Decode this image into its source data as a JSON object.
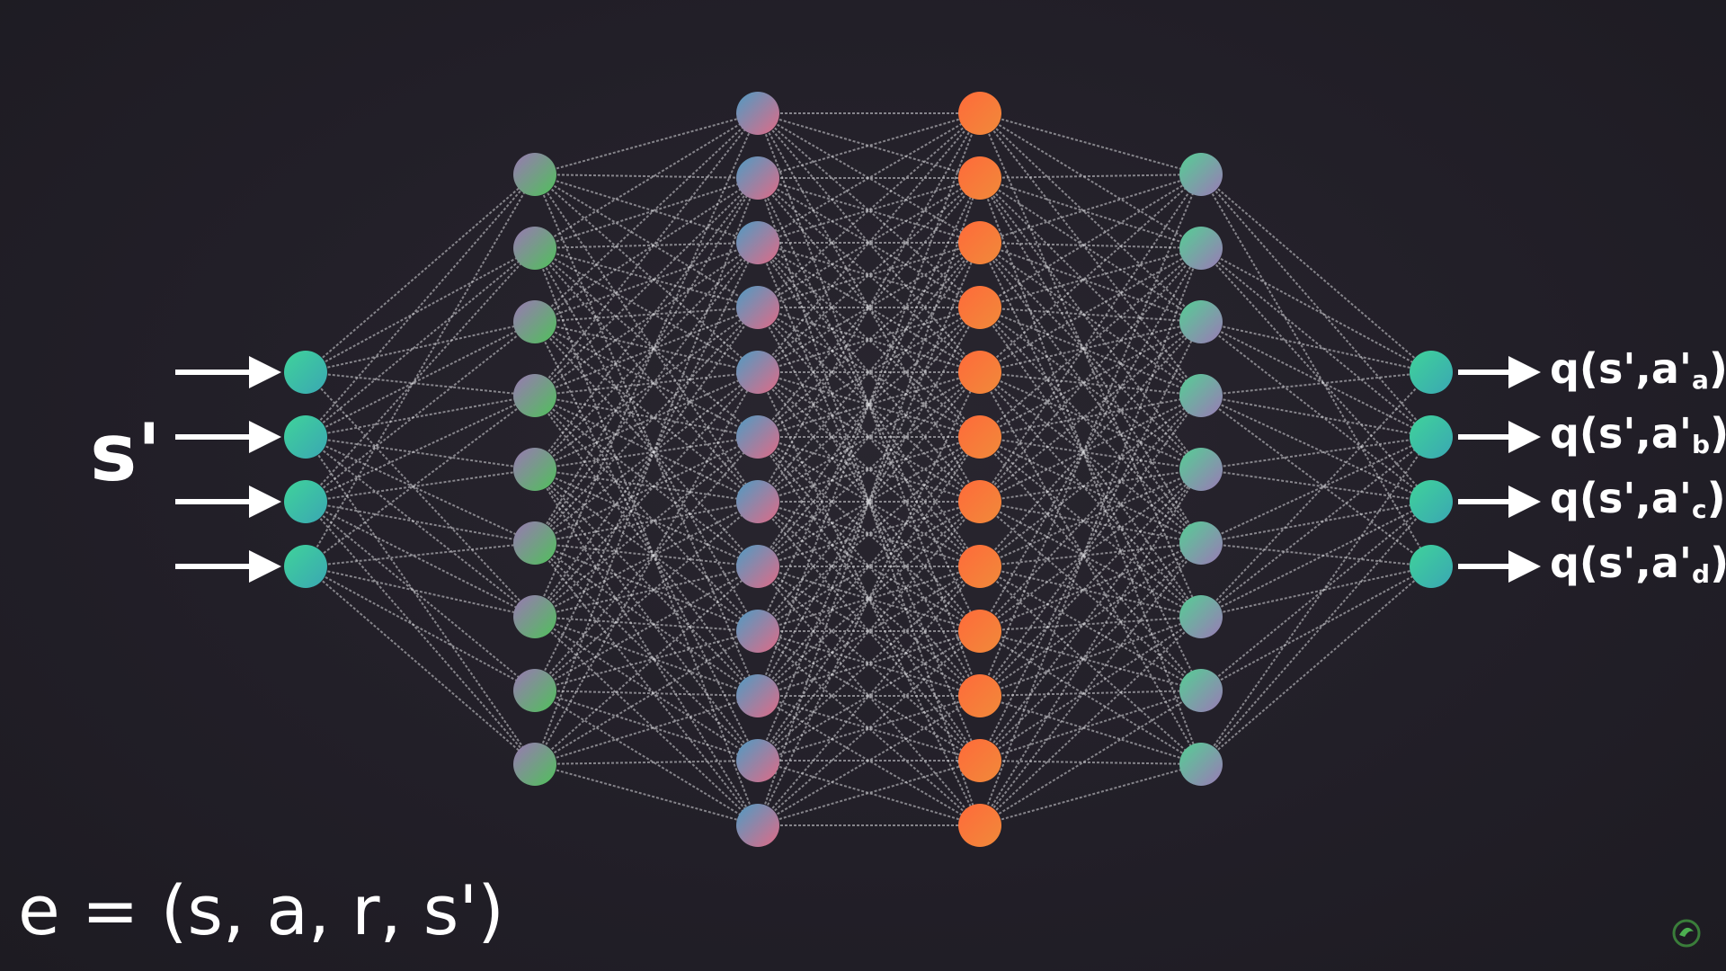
{
  "input_symbol": "s'",
  "outputs": [
    {
      "prefix": "q(s',a'",
      "sub": "a",
      "suffix": ")"
    },
    {
      "prefix": "q(s',a'",
      "sub": "b",
      "suffix": ")"
    },
    {
      "prefix": "q(s',a'",
      "sub": "c",
      "suffix": ")"
    },
    {
      "prefix": "q(s',a'",
      "sub": "d",
      "suffix": ")"
    }
  ],
  "experience_tuple": "e = (s, a, r, s')",
  "network": {
    "layer_sizes": [
      4,
      9,
      12,
      12,
      9,
      4
    ],
    "layer_colors": [
      [
        "#3fd39a",
        "#3aa7b3"
      ],
      [
        "#9a78b4",
        "#4fc15a"
      ],
      [
        "#4e9cc4",
        "#e06a86"
      ],
      [
        "#ff6a3a",
        "#f08a3a"
      ],
      [
        "#54cf94",
        "#9a7ab6"
      ],
      [
        "#3fd39a",
        "#3aa7b3"
      ]
    ],
    "edge_color": "#d9d9dc"
  },
  "colors": {
    "background": "#201e26",
    "text": "#ffffff"
  },
  "icons": {
    "logo": "deeplizard-logo-icon"
  }
}
